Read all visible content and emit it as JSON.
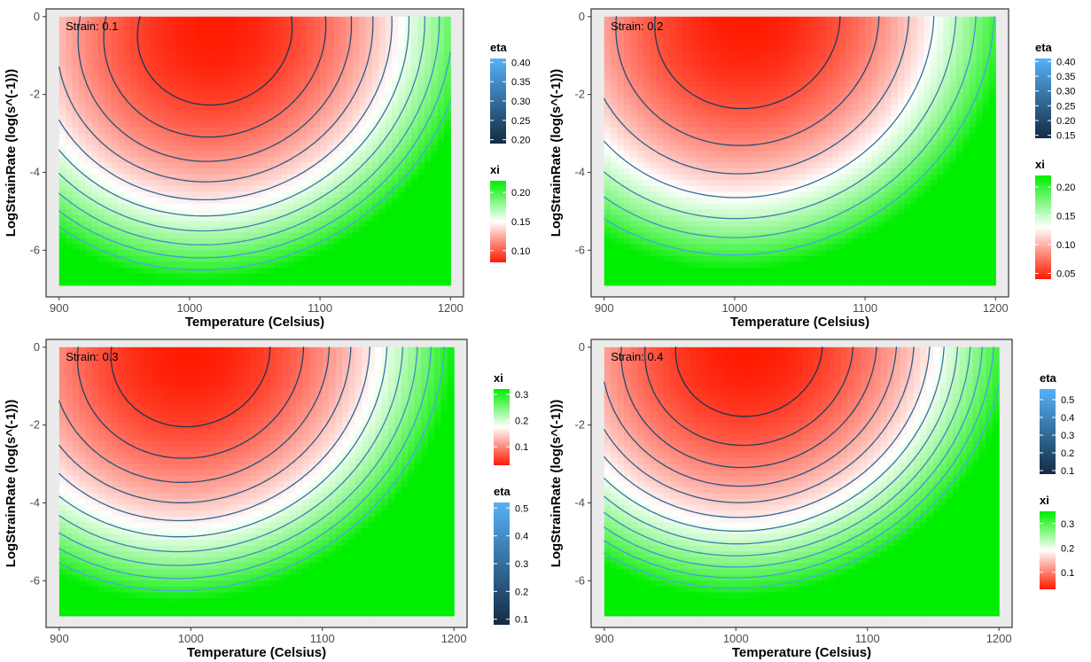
{
  "colors": {
    "xi_low": "#ff1a00",
    "xi_mid": "#ffffff",
    "xi_high": "#00ee00",
    "eta_low": "#132b43",
    "eta_high": "#56b1f7",
    "panel_background": "#ebebeb"
  },
  "chart_data": [
    {
      "type": "heatmap",
      "subtype": "heatmap with overlaid contour lines",
      "annotation": "Strain: 0.1",
      "xlabel": "Temperature (Celsius)",
      "ylabel": "LogStrainRate (log(s^(-1)))",
      "xlim": [
        890,
        1210
      ],
      "ylim": [
        -7.2,
        0.2
      ],
      "data_range": {
        "x": [
          900,
          1200
        ],
        "y": [
          -6.9,
          0
        ]
      },
      "x_ticks": [
        900,
        1000,
        1100,
        1200
      ],
      "y_ticks": [
        0,
        -2,
        -4,
        -6
      ],
      "grid": true,
      "fill_scale": {
        "name": "xi",
        "range": [
          0.08,
          0.22
        ],
        "breaks": [
          0.1,
          0.15,
          0.2
        ],
        "break_labels": [
          "0.10",
          "0.15",
          "0.20"
        ],
        "colors": [
          "red",
          "white",
          "green"
        ]
      },
      "contour_scale": {
        "name": "eta",
        "range": [
          0.19,
          0.41
        ],
        "breaks": [
          0.2,
          0.25,
          0.3,
          0.35,
          0.4
        ],
        "break_labels": [
          "0.20",
          "0.25",
          "0.30",
          "0.35",
          "0.40"
        ],
        "colors": [
          "dark navy",
          "light blue"
        ]
      },
      "legend_order": [
        "eta",
        "xi"
      ],
      "legend_position": "right",
      "xi_minimum": {
        "x": 1020,
        "y": -0.6,
        "value": 0.08
      },
      "xi_maximum_region": "bottom (log strain rate near -7)",
      "contour_levels": 10
    },
    {
      "type": "heatmap",
      "subtype": "heatmap with overlaid contour lines",
      "annotation": "Strain: 0.2",
      "xlabel": "Temperature (Celsius)",
      "ylabel": "LogStrainRate (log(s^(-1)))",
      "xlim": [
        890,
        1210
      ],
      "ylim": [
        -7.2,
        0.2
      ],
      "data_range": {
        "x": [
          900,
          1200
        ],
        "y": [
          -6.9,
          0
        ]
      },
      "x_ticks": [
        900,
        1000,
        1100,
        1200
      ],
      "y_ticks": [
        0,
        -2,
        -4,
        -6
      ],
      "grid": true,
      "fill_scale": {
        "name": "xi",
        "range": [
          0.04,
          0.22
        ],
        "breaks": [
          0.05,
          0.1,
          0.15,
          0.2
        ],
        "break_labels": [
          "0.05",
          "0.10",
          "0.15",
          "0.20"
        ],
        "colors": [
          "red",
          "white",
          "green"
        ]
      },
      "contour_scale": {
        "name": "eta",
        "range": [
          0.14,
          0.41
        ],
        "breaks": [
          0.15,
          0.2,
          0.25,
          0.3,
          0.35,
          0.4
        ],
        "break_labels": [
          "0.15",
          "0.20",
          "0.25",
          "0.30",
          "0.35",
          "0.40"
        ],
        "colors": [
          "dark navy",
          "light blue"
        ]
      },
      "legend_order": [
        "eta",
        "xi"
      ],
      "legend_position": "right",
      "xi_minimum": {
        "x": 1010,
        "y": -0.3,
        "value": 0.04
      },
      "xi_maximum_region": "bottom-left",
      "contour_levels": 7
    },
    {
      "type": "heatmap",
      "subtype": "heatmap with overlaid contour lines",
      "annotation": "Strain: 0.3",
      "xlabel": "Temperature (Celsius)",
      "ylabel": "LogStrainRate (log(s^(-1)))",
      "xlim": [
        890,
        1210
      ],
      "ylim": [
        -7.2,
        0.2
      ],
      "data_range": {
        "x": [
          900,
          1200
        ],
        "y": [
          -6.9,
          0
        ]
      },
      "x_ticks": [
        900,
        1000,
        1100,
        1200
      ],
      "y_ticks": [
        0,
        -2,
        -4,
        -6
      ],
      "grid": true,
      "fill_scale": {
        "name": "xi",
        "range": [
          0.03,
          0.32
        ],
        "breaks": [
          0.1,
          0.2,
          0.3
        ],
        "break_labels": [
          "0.1",
          "0.2",
          "0.3"
        ],
        "colors": [
          "red",
          "white",
          "green"
        ]
      },
      "contour_scale": {
        "name": "eta",
        "range": [
          0.08,
          0.52
        ],
        "breaks": [
          0.1,
          0.2,
          0.3,
          0.4,
          0.5
        ],
        "break_labels": [
          "0.1",
          "0.2",
          "0.3",
          "0.4",
          "0.5"
        ],
        "colors": [
          "dark navy",
          "light blue"
        ]
      },
      "legend_order": [
        "xi",
        "eta"
      ],
      "legend_position": "right",
      "xi_minimum": {
        "x": 1000,
        "y": -0.3,
        "value": 0.03
      },
      "xi_maximum_region": "bottom-left",
      "contour_levels": 10
    },
    {
      "type": "heatmap",
      "subtype": "heatmap with overlaid contour lines",
      "annotation": "Strain: 0.4",
      "xlabel": "Temperature (Celsius)",
      "ylabel": "LogStrainRate (log(s^(-1)))",
      "xlim": [
        890,
        1210
      ],
      "ylim": [
        -7.2,
        0.2
      ],
      "data_range": {
        "x": [
          900,
          1200
        ],
        "y": [
          -6.9,
          0
        ]
      },
      "x_ticks": [
        900,
        1000,
        1100,
        1200
      ],
      "y_ticks": [
        0,
        -2,
        -4,
        -6
      ],
      "grid": true,
      "fill_scale": {
        "name": "xi",
        "range": [
          0.03,
          0.35
        ],
        "breaks": [
          0.1,
          0.2,
          0.3
        ],
        "break_labels": [
          "0.1",
          "0.2",
          "0.3"
        ],
        "colors": [
          "red",
          "white",
          "green"
        ]
      },
      "contour_scale": {
        "name": "eta",
        "range": [
          0.08,
          0.56
        ],
        "breaks": [
          0.1,
          0.2,
          0.3,
          0.4,
          0.5
        ],
        "break_labels": [
          "0.1",
          "0.2",
          "0.3",
          "0.4",
          "0.5"
        ],
        "colors": [
          "dark navy",
          "light blue"
        ]
      },
      "legend_order": [
        "eta",
        "xi"
      ],
      "legend_position": "right",
      "xi_minimum": {
        "x": 1010,
        "y": -0.2,
        "value": 0.03
      },
      "xi_maximum_region": "bottom-left",
      "contour_levels": 12
    }
  ]
}
